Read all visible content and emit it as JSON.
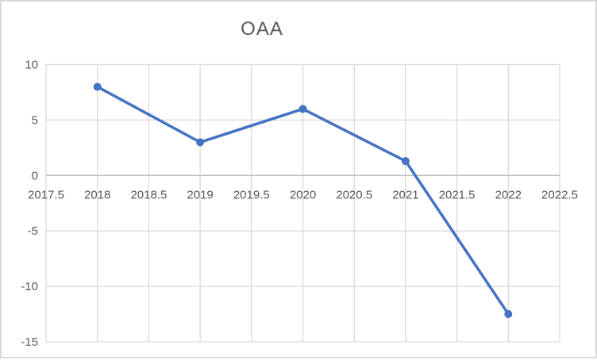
{
  "chart_data": {
    "type": "line",
    "title": "OAA",
    "series": [
      {
        "name": "OAA",
        "x": [
          2018,
          2019,
          2020,
          2021,
          2022
        ],
        "y": [
          8,
          3,
          6,
          1.3,
          -12.5
        ]
      }
    ],
    "xlim": [
      2017.5,
      2022.5
    ],
    "ylim": [
      -15,
      10
    ],
    "x_tick_step": 0.5,
    "y_tick_step": 5,
    "x_tick_labels": [
      "2017.5",
      "2018",
      "2018.5",
      "2019",
      "2019.5",
      "2020",
      "2020.5",
      "2021",
      "2021.5",
      "2022",
      "2022.5"
    ],
    "y_tick_labels": [
      "10",
      "5",
      "0",
      "-5",
      "-10",
      "-15"
    ],
    "grid": true,
    "legend": "none",
    "x_labels_position": "below-zero-axis-inside-plot",
    "colors": {
      "series": "#4472C4",
      "gridline": "#D9D9D9",
      "zero_axis_line": "#BFBFBF",
      "tick_label": "#595959",
      "title": "#595959",
      "frame_border": "#D9D9D9",
      "background": "#FFFFFF"
    }
  }
}
